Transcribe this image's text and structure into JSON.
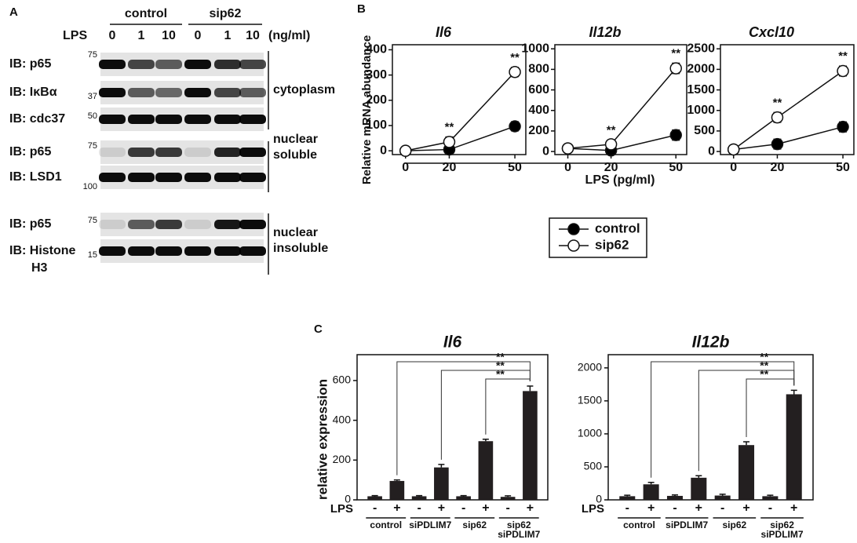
{
  "panel_a": {
    "label": "A",
    "groups": [
      "control",
      "sip62"
    ],
    "lps_label": "LPS",
    "doses": [
      "0",
      "1",
      "10",
      "0",
      "1",
      "10"
    ],
    "unit": "(ng/ml)",
    "rows": [
      {
        "label": [
          "IB: p65"
        ],
        "marker": "75"
      },
      {
        "label": [
          "IB: IκBα"
        ],
        "marker": "37"
      },
      {
        "label": [
          "IB: cdc37"
        ],
        "marker": "50"
      },
      {
        "label": [
          "IB: p65"
        ],
        "marker": "75"
      },
      {
        "label": [
          "IB: LSD1"
        ],
        "marker": "100"
      },
      {
        "label": [
          "IB: p65"
        ],
        "marker": "75"
      },
      {
        "label": [
          "IB: Histone",
          "H3"
        ],
        "marker": "15"
      }
    ],
    "fractions": [
      [
        "cytoplasm"
      ],
      [
        "nuclear",
        "soluble"
      ],
      [
        "nuclear",
        "insoluble"
      ]
    ]
  },
  "panel_b": {
    "label": "B",
    "ylabel": "Relative mRNA abundance",
    "xlabel": "LPS (pg/ml)"
  },
  "panel_c": {
    "label": "C",
    "ylabel": "relative expression"
  },
  "chart_data": [
    {
      "type": "line",
      "title": "Il6",
      "x": [
        0,
        20,
        50
      ],
      "xlim": [
        -6,
        55
      ],
      "xticks": [
        0,
        20,
        50
      ],
      "ylim": [
        -15,
        420
      ],
      "yticks": [
        0,
        100,
        200,
        300,
        400
      ],
      "series": [
        {
          "name": "control",
          "color": "#000000",
          "values": [
            0,
            5,
            97
          ],
          "errors": [
            0,
            5,
            18
          ]
        },
        {
          "name": "sip62",
          "color": "#ffffff",
          "values": [
            0,
            35,
            312
          ],
          "errors": [
            0,
            20,
            18
          ]
        }
      ],
      "annotations": [
        {
          "x": 20,
          "text": "**"
        },
        {
          "x": 50,
          "text": "**"
        }
      ]
    },
    {
      "type": "line",
      "title": "Il12b",
      "x": [
        0,
        20,
        50
      ],
      "xlim": [
        -6,
        55
      ],
      "xticks": [
        0,
        20,
        50
      ],
      "ylim": [
        -30,
        1040
      ],
      "yticks": [
        0,
        200,
        400,
        600,
        800,
        1000
      ],
      "series": [
        {
          "name": "control",
          "color": "#000000",
          "values": [
            30,
            10,
            160
          ],
          "errors": [
            0,
            10,
            50
          ]
        },
        {
          "name": "sip62",
          "color": "#ffffff",
          "values": [
            30,
            70,
            810
          ],
          "errors": [
            0,
            40,
            50
          ]
        }
      ],
      "annotations": [
        {
          "x": 20,
          "text": "**"
        },
        {
          "x": 50,
          "text": "**"
        }
      ]
    },
    {
      "type": "line",
      "title": "Cxcl10",
      "x": [
        0,
        20,
        50
      ],
      "xlim": [
        -6,
        55
      ],
      "xticks": [
        0,
        20,
        50
      ],
      "ylim": [
        -75,
        2600
      ],
      "yticks": [
        0,
        500,
        1000,
        1500,
        2000,
        2500
      ],
      "series": [
        {
          "name": "control",
          "color": "#000000",
          "values": [
            50,
            180,
            600
          ],
          "errors": [
            0,
            120,
            120
          ]
        },
        {
          "name": "sip62",
          "color": "#ffffff",
          "values": [
            50,
            830,
            1960
          ],
          "errors": [
            0,
            120,
            120
          ]
        }
      ],
      "annotations": [
        {
          "x": 20,
          "text": "**"
        },
        {
          "x": 50,
          "text": "**"
        }
      ]
    },
    {
      "type": "bar",
      "title": "Il6",
      "x_label": "LPS",
      "categories": [
        "-",
        "+",
        "-",
        "+",
        "-",
        "+",
        "-",
        "+"
      ],
      "groups": [
        [
          "control"
        ],
        [
          "siPDLIM7"
        ],
        [
          "sip62"
        ],
        [
          "sip62",
          "siPDLIM7"
        ]
      ],
      "values": [
        18,
        95,
        18,
        163,
        18,
        295,
        15,
        547
      ],
      "errors": [
        3,
        5,
        3,
        15,
        3,
        10,
        5,
        25
      ],
      "color": "#231f20",
      "ylim": [
        0,
        730
      ],
      "yticks": [
        0,
        200,
        400,
        600
      ],
      "comparisons": [
        {
          "from": 1,
          "to": 7,
          "label": "**"
        },
        {
          "from": 3,
          "to": 7,
          "label": "**"
        },
        {
          "from": 5,
          "to": 7,
          "label": "**"
        }
      ]
    },
    {
      "type": "bar",
      "title": "Il12b",
      "x_label": "LPS",
      "categories": [
        "-",
        "+",
        "-",
        "+",
        "-",
        "+",
        "-",
        "+"
      ],
      "groups": [
        [
          "control"
        ],
        [
          "siPDLIM7"
        ],
        [
          "sip62"
        ],
        [
          "sip62",
          "siPDLIM7"
        ]
      ],
      "values": [
        55,
        235,
        60,
        335,
        65,
        830,
        55,
        1600
      ],
      "errors": [
        15,
        30,
        15,
        30,
        20,
        50,
        15,
        60
      ],
      "color": "#231f20",
      "ylim": [
        0,
        2200
      ],
      "yticks": [
        0,
        500,
        1000,
        1500,
        2000
      ],
      "comparisons": [
        {
          "from": 1,
          "to": 7,
          "label": "**"
        },
        {
          "from": 3,
          "to": 7,
          "label": "**"
        },
        {
          "from": 5,
          "to": 7,
          "label": "**"
        }
      ]
    }
  ]
}
